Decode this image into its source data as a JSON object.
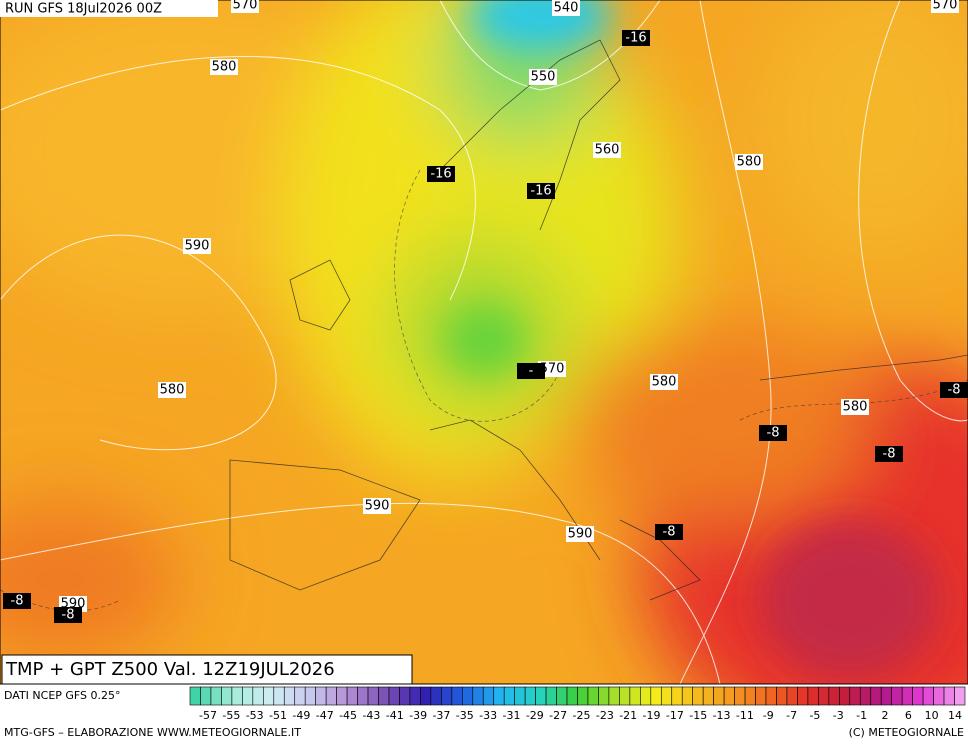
{
  "header": {
    "run": "RUN GFS 18Jul2026 00Z",
    "title": "TMP + GPT Z500 Val. 12Z19JUL2026"
  },
  "map": {
    "height_labels": [
      "540",
      "570",
      "570",
      "580",
      "550",
      "560",
      "580",
      "590",
      "570",
      "580",
      "580",
      "580",
      "590",
      "590",
      "590"
    ],
    "temp_labels": [
      "-16",
      "-16",
      "-16",
      "-",
      "-8",
      "-8",
      "-8",
      "-8",
      "-8",
      "-8"
    ]
  },
  "legend": {
    "source": "DATI NCEP GFS 0.25°",
    "labels": [
      "-57",
      "-55",
      "-53",
      "-51",
      "-49",
      "-47",
      "-45",
      "-43",
      "-41",
      "-39",
      "-37",
      "-35",
      "-33",
      "-31",
      "-29",
      "-27",
      "-25",
      "-23",
      "-21",
      "-19",
      "-17",
      "-15",
      "-13",
      "-11",
      "-9",
      "-7",
      "-5",
      "-3",
      "-1",
      "2",
      "6",
      "10",
      "14"
    ]
  },
  "footer": {
    "left": "MTG-GFS – ELABORAZIONE WWW.METEOGIORNALE.IT",
    "right": "(C) METEOGIORNALE"
  }
}
